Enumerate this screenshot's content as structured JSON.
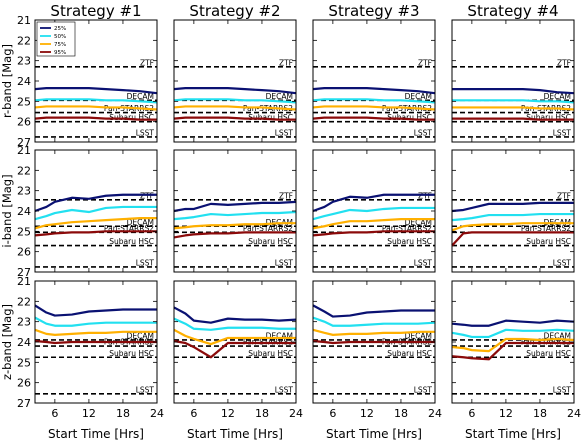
{
  "chart_data": {
    "type": "line",
    "strategy_titles": [
      "Strategy #1",
      "Strategy #2",
      "Strategy #3",
      "Strategy #4"
    ],
    "band_ylabels": [
      "r-band [Mag]",
      "i-band [Mag]",
      "z-band [Mag]"
    ],
    "xlabel": "Start Time [Hrs]",
    "xlim": [
      2.5,
      24
    ],
    "xticks": [
      6,
      12,
      18,
      24
    ],
    "ylim": [
      27,
      21
    ],
    "yticks": [
      21,
      22,
      23,
      24,
      25,
      26,
      27
    ],
    "legend": {
      "placement": "upper-left",
      "entries": [
        "25%",
        "50%",
        "75%",
        "95%"
      ]
    },
    "series_colors": [
      "#0a1172",
      "#22e0f0",
      "#ffb000",
      "#8b0a0a"
    ],
    "x": [
      2.5,
      4.5,
      6,
      9,
      12,
      15,
      18,
      21,
      24
    ],
    "reference_lines": {
      "r": [
        {
          "label": "ZTF",
          "value": 23.3
        },
        {
          "label": "DECAM",
          "value": 24.95
        },
        {
          "label": "Pan-STARRS2",
          "value": 25.55
        },
        {
          "label": "Subaru HSC",
          "value": 26.0
        },
        {
          "label": "LSST",
          "value": 26.75
        }
      ],
      "i": [
        {
          "label": "ZTF",
          "value": 23.45
        },
        {
          "label": "DECAM",
          "value": 24.75
        },
        {
          "label": "Pan-STARRS2",
          "value": 25.05
        },
        {
          "label": "Subaru HSC",
          "value": 25.7
        },
        {
          "label": "LSST",
          "value": 26.75
        }
      ],
      "z": [
        {
          "label": "DECAM",
          "value": 23.9
        },
        {
          "label": "Pan-STARRS2",
          "value": 24.2
        },
        {
          "label": "Subaru HSC",
          "value": 24.75
        },
        {
          "label": "LSST",
          "value": 26.55
        }
      ]
    },
    "panels": [
      [
        {
          "series": [
            [
              24.4,
              24.35,
              24.35,
              24.35,
              24.35,
              24.4,
              24.45,
              24.5,
              24.6
            ],
            [
              24.95,
              24.9,
              24.9,
              24.9,
              24.9,
              24.95,
              24.95,
              25.0,
              25.05
            ],
            [
              25.3,
              25.25,
              25.25,
              25.25,
              25.25,
              25.3,
              25.3,
              25.35,
              25.4
            ],
            [
              25.85,
              25.8,
              25.8,
              25.8,
              25.8,
              25.85,
              25.85,
              25.9,
              25.9
            ]
          ]
        },
        {
          "series": [
            [
              24.4,
              24.35,
              24.35,
              24.35,
              24.35,
              24.4,
              24.45,
              24.5,
              24.6
            ],
            [
              24.95,
              24.9,
              24.9,
              24.9,
              24.9,
              24.95,
              24.95,
              25.0,
              25.05
            ],
            [
              25.3,
              25.25,
              25.25,
              25.25,
              25.25,
              25.3,
              25.3,
              25.35,
              25.4
            ],
            [
              25.85,
              25.8,
              25.8,
              25.8,
              25.8,
              25.85,
              25.85,
              25.9,
              25.9
            ]
          ]
        },
        {
          "series": [
            [
              24.4,
              24.35,
              24.35,
              24.35,
              24.35,
              24.4,
              24.45,
              24.5,
              24.6
            ],
            [
              24.95,
              24.9,
              24.9,
              24.9,
              24.9,
              24.95,
              24.95,
              25.0,
              25.05
            ],
            [
              25.3,
              25.25,
              25.25,
              25.25,
              25.25,
              25.3,
              25.3,
              25.35,
              25.4
            ],
            [
              25.85,
              25.8,
              25.8,
              25.8,
              25.8,
              25.85,
              25.85,
              25.9,
              25.9
            ]
          ]
        },
        {
          "series": [
            [
              24.4,
              24.4,
              24.4,
              24.4,
              24.4,
              24.4,
              24.45,
              24.55,
              24.6
            ],
            [
              24.95,
              24.95,
              24.95,
              24.95,
              24.95,
              24.95,
              25.0,
              25.0,
              25.05
            ],
            [
              25.3,
              25.3,
              25.3,
              25.3,
              25.3,
              25.3,
              25.35,
              25.35,
              25.4
            ],
            [
              25.85,
              25.85,
              25.85,
              25.85,
              25.85,
              25.85,
              25.9,
              25.9,
              25.9
            ]
          ]
        }
      ],
      [
        {
          "series": [
            [
              24.0,
              23.8,
              23.55,
              23.35,
              23.4,
              23.25,
              23.2,
              23.2,
              23.2
            ],
            [
              24.4,
              24.25,
              24.1,
              23.95,
              24.05,
              23.85,
              23.8,
              23.8,
              23.8
            ],
            [
              24.85,
              24.7,
              24.65,
              24.55,
              24.5,
              24.45,
              24.4,
              24.35,
              24.35
            ],
            [
              25.2,
              25.15,
              25.1,
              25.05,
              25.05,
              25.0,
              25.0,
              25.0,
              25.0
            ]
          ]
        },
        {
          "series": [
            [
              24.0,
              23.9,
              23.9,
              23.65,
              23.7,
              23.65,
              23.6,
              23.6,
              23.55
            ],
            [
              24.4,
              24.35,
              24.3,
              24.15,
              24.2,
              24.15,
              24.1,
              24.1,
              24.05
            ],
            [
              24.85,
              24.8,
              24.75,
              24.7,
              24.7,
              24.65,
              24.65,
              24.6,
              24.6
            ],
            [
              25.3,
              25.2,
              25.15,
              25.1,
              25.1,
              25.05,
              25.05,
              25.05,
              25.05
            ]
          ]
        },
        {
          "series": [
            [
              24.0,
              23.8,
              23.55,
              23.3,
              23.35,
              23.2,
              23.2,
              23.2,
              23.2
            ],
            [
              24.4,
              24.25,
              24.15,
              23.95,
              24.0,
              23.9,
              23.85,
              23.85,
              23.85
            ],
            [
              24.85,
              24.75,
              24.65,
              24.5,
              24.5,
              24.45,
              24.4,
              24.4,
              24.4
            ],
            [
              25.2,
              25.15,
              25.1,
              25.05,
              25.05,
              25.0,
              25.0,
              25.0,
              25.0
            ]
          ]
        },
        {
          "series": [
            [
              24.0,
              23.95,
              23.85,
              23.65,
              23.65,
              23.65,
              23.6,
              23.6,
              23.6
            ],
            [
              24.45,
              24.4,
              24.35,
              24.2,
              24.2,
              24.2,
              24.15,
              24.15,
              24.15
            ],
            [
              24.95,
              24.75,
              24.7,
              24.65,
              24.65,
              24.6,
              24.6,
              24.6,
              24.6
            ],
            [
              25.7,
              25.1,
              25.05,
              25.05,
              25.05,
              25.05,
              25.05,
              25.05,
              25.05
            ]
          ]
        }
      ],
      [
        {
          "series": [
            [
              22.2,
              22.55,
              22.7,
              22.65,
              22.5,
              22.45,
              22.4,
              22.4,
              22.4
            ],
            [
              22.8,
              23.1,
              23.2,
              23.2,
              23.1,
              23.05,
              23.05,
              23.05,
              23.05
            ],
            [
              23.4,
              23.6,
              23.65,
              23.6,
              23.55,
              23.55,
              23.5,
              23.5,
              23.5
            ],
            [
              23.95,
              24.0,
              24.05,
              24.0,
              24.0,
              24.0,
              24.0,
              24.0,
              24.0
            ]
          ]
        },
        {
          "series": [
            [
              22.3,
              22.6,
              22.95,
              23.05,
              22.85,
              22.9,
              22.9,
              22.95,
              22.9
            ],
            [
              22.85,
              23.1,
              23.35,
              23.4,
              23.3,
              23.3,
              23.3,
              23.35,
              23.35
            ],
            [
              23.4,
              23.7,
              23.85,
              24.1,
              23.8,
              23.8,
              23.8,
              23.8,
              23.8
            ],
            [
              23.95,
              24.05,
              24.25,
              24.75,
              24.05,
              24.05,
              24.05,
              24.05,
              24.05
            ]
          ]
        },
        {
          "series": [
            [
              22.2,
              22.5,
              22.75,
              22.7,
              22.55,
              22.5,
              22.45,
              22.45,
              22.45
            ],
            [
              22.8,
              23.0,
              23.2,
              23.2,
              23.15,
              23.1,
              23.1,
              23.1,
              23.05
            ],
            [
              23.4,
              23.55,
              23.65,
              23.6,
              23.6,
              23.55,
              23.55,
              23.5,
              23.5
            ],
            [
              23.95,
              24.0,
              24.05,
              24.0,
              24.0,
              24.0,
              24.0,
              24.0,
              24.0
            ]
          ]
        },
        {
          "series": [
            [
              23.1,
              23.15,
              23.2,
              23.2,
              22.95,
              23.0,
              23.05,
              22.95,
              23.0
            ],
            [
              23.55,
              23.65,
              23.75,
              23.75,
              23.4,
              23.45,
              23.45,
              23.4,
              23.45
            ],
            [
              24.25,
              24.3,
              24.4,
              24.45,
              23.85,
              23.85,
              23.9,
              23.85,
              23.9
            ],
            [
              24.7,
              24.75,
              24.8,
              24.85,
              24.05,
              24.05,
              24.05,
              24.05,
              24.05
            ]
          ]
        }
      ]
    ]
  }
}
